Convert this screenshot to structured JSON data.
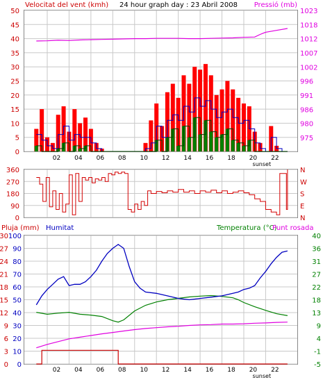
{
  "colors": {
    "wind_speed": "#ff0000",
    "wind_avg": "#0000c0",
    "wind_low": "#008000",
    "pressure": "#e000e0",
    "direction": "#d40000",
    "humidity": "#0000c0",
    "temperature": "#008000",
    "dewpoint": "#e000e0",
    "rain": "#cc0000",
    "grid": "#c8c8c8"
  },
  "chart_data": [
    {
      "type": "line",
      "title": "24 hour graph day : 23 Abril 2008",
      "left_label": "Velocitat del vent (kmh)",
      "right_label": "Pressió (mb)",
      "x_tick_labels": [
        "02",
        "04",
        "06",
        "08",
        "10",
        "12",
        "14",
        "16",
        "18",
        "20",
        "22"
      ],
      "sunset_label": "sunset",
      "ylim_left": [
        0,
        50
      ],
      "y_ticks_left": [
        "0",
        "5",
        "10",
        "15",
        "20",
        "25",
        "30",
        "35",
        "40",
        "45",
        "50"
      ],
      "ylim_right": [
        975,
        1028
      ],
      "y_ticks_right": [
        "975",
        "980",
        "986",
        "991",
        "996",
        "1002",
        "1007",
        "1012",
        "1018",
        "1023"
      ],
      "series": [
        {
          "name": "wind_gust",
          "x": [
            0,
            0.5,
            1,
            1.5,
            2,
            2.5,
            3,
            3.5,
            4,
            4.5,
            5,
            5.5,
            6,
            6.5,
            7,
            7.5,
            8,
            8.5,
            9,
            9.5,
            10,
            10.5,
            11,
            11.5,
            12,
            12.5,
            13,
            13.5,
            14,
            14.5,
            15,
            15.5,
            16,
            16.5,
            17,
            17.5,
            18,
            18.5,
            19,
            19.5,
            20,
            20.5,
            21,
            21.5,
            22,
            22.5,
            23
          ],
          "values": [
            8,
            15,
            5,
            3,
            13,
            16,
            7,
            15,
            10,
            12,
            8,
            3,
            1,
            0,
            0,
            0,
            0,
            0,
            0,
            0,
            3,
            11,
            17,
            9,
            21,
            24,
            19,
            27,
            24,
            30,
            29,
            31,
            27,
            20,
            22,
            25,
            22,
            19,
            17,
            16,
            7,
            3,
            0,
            9,
            2,
            0,
            0
          ]
        },
        {
          "name": "wind_avg",
          "x": [
            0,
            0.5,
            1,
            1.5,
            2,
            2.5,
            3,
            3.5,
            4,
            4.5,
            5,
            5.5,
            6,
            6.5,
            7,
            7.5,
            8,
            8.5,
            9,
            9.5,
            10,
            10.5,
            11,
            11.5,
            12,
            12.5,
            13,
            13.5,
            14,
            14.5,
            15,
            15.5,
            16,
            16.5,
            17,
            17.5,
            18,
            18.5,
            19,
            19.5,
            20,
            20.5,
            21,
            21.5,
            22,
            22.5,
            23
          ],
          "values": [
            6,
            4,
            2,
            1,
            6,
            9,
            4,
            6,
            5,
            5,
            3,
            1,
            0,
            0,
            0,
            0,
            0,
            0,
            0,
            0,
            1,
            3,
            9,
            5,
            11,
            13,
            11,
            16,
            14,
            19,
            16,
            18,
            15,
            12,
            14,
            15,
            12,
            10,
            11,
            8,
            3,
            1,
            0,
            5,
            1,
            0,
            0
          ]
        },
        {
          "name": "wind_low",
          "x": [
            0,
            0.5,
            1,
            1.5,
            2,
            2.5,
            3,
            3.5,
            4,
            4.5,
            5,
            5.5,
            6,
            6.5,
            7,
            7.5,
            8,
            8.5,
            9,
            9.5,
            10,
            10.5,
            11,
            11.5,
            12,
            12.5,
            13,
            13.5,
            14,
            14.5,
            15,
            15.5,
            16,
            16.5,
            17,
            17.5,
            18,
            18.5,
            19,
            19.5,
            20,
            20.5,
            21,
            21.5,
            22,
            22.5,
            23
          ],
          "values": [
            2,
            0,
            0,
            0,
            1,
            3,
            0,
            2,
            1,
            2,
            0,
            0,
            0,
            0,
            0,
            0,
            0,
            0,
            0,
            0,
            0,
            0,
            4,
            0,
            5,
            8,
            2,
            9,
            5,
            12,
            6,
            11,
            7,
            5,
            6,
            8,
            4,
            3,
            2,
            4,
            0,
            0,
            0,
            0,
            0,
            0,
            0
          ]
        },
        {
          "name": "pressure",
          "axis": "right",
          "x": [
            0,
            1,
            2,
            3,
            4,
            5,
            6,
            7,
            8,
            9,
            10,
            11,
            12,
            13,
            14,
            15,
            16,
            17,
            18,
            19,
            20,
            20.5,
            21,
            22,
            23
          ],
          "values": [
            1016.5,
            1016.6,
            1016.8,
            1016.7,
            1016.9,
            1017.0,
            1017.1,
            1017.2,
            1017.3,
            1017.4,
            1017.4,
            1017.5,
            1017.5,
            1017.5,
            1017.4,
            1017.4,
            1017.5,
            1017.6,
            1017.7,
            1017.9,
            1018.0,
            1019.0,
            1019.8,
            1020.5,
            1021.2
          ]
        }
      ]
    },
    {
      "type": "line",
      "left_label": "",
      "ylim": [
        0,
        360
      ],
      "y_ticks_left": [
        "0",
        "90",
        "180",
        "270",
        "360"
      ],
      "right_ticks": [
        "N",
        "E",
        "S",
        "W",
        "N"
      ],
      "series": [
        {
          "name": "wind_direction",
          "x": [
            0,
            0.3,
            0.6,
            0.9,
            1.2,
            1.5,
            1.8,
            2.1,
            2.4,
            2.7,
            3.0,
            3.3,
            3.6,
            3.9,
            4.2,
            4.5,
            4.8,
            5.1,
            5.4,
            5.7,
            6.0,
            6.3,
            6.6,
            6.9,
            7.2,
            7.5,
            7.8,
            8.1,
            8.4,
            8.7,
            9.0,
            9.3,
            9.6,
            9.9,
            10.2,
            10.5,
            11,
            11.5,
            12,
            12.5,
            13,
            13.5,
            14,
            14.5,
            15,
            15.5,
            16,
            16.5,
            17,
            17.5,
            18,
            18.5,
            19,
            19.5,
            20,
            20.5,
            21,
            21.5,
            22,
            22.3,
            22.6,
            22.9,
            23
          ],
          "values": [
            300,
            250,
            120,
            300,
            80,
            200,
            60,
            180,
            40,
            100,
            320,
            20,
            330,
            120,
            300,
            280,
            300,
            260,
            290,
            280,
            300,
            270,
            330,
            320,
            340,
            330,
            340,
            330,
            60,
            40,
            100,
            60,
            120,
            90,
            200,
            180,
            195,
            185,
            200,
            190,
            210,
            190,
            200,
            180,
            200,
            190,
            205,
            185,
            200,
            180,
            190,
            200,
            185,
            170,
            140,
            120,
            60,
            40,
            20,
            330,
            330,
            60,
            360
          ]
        }
      ]
    },
    {
      "type": "line",
      "left_label_1": "Pluja (mm)",
      "left_label_2": "Humitat",
      "right_label_1": "Temperatura (°C)",
      "right_label_2": "Punt rosada",
      "ylim_rain": [
        0,
        30
      ],
      "y_ticks_rain": [
        "0",
        "3",
        "6",
        "9",
        "12",
        "15",
        "18",
        "21",
        "24",
        "27",
        "30"
      ],
      "ylim_humidity": [
        0,
        100
      ],
      "y_ticks_humidity": [
        "0",
        "10",
        "20",
        "30",
        "40",
        "50",
        "60",
        "70",
        "80",
        "90",
        "100"
      ],
      "ylim_temp": [
        -5,
        41
      ],
      "y_ticks_temp": [
        "-5",
        "-1",
        "4",
        "9",
        "13",
        "18",
        "22",
        "27",
        "31",
        "36",
        "40"
      ],
      "series": [
        {
          "name": "humidity",
          "x": [
            0,
            0.5,
            1,
            1.5,
            2,
            2.5,
            3,
            3.5,
            4,
            4.5,
            5,
            5.5,
            6,
            6.5,
            7,
            7.5,
            8,
            8.5,
            9,
            9.5,
            10,
            11,
            12,
            13,
            14,
            15,
            16,
            17,
            18,
            18.5,
            19,
            19.5,
            20,
            20.5,
            21,
            21.5,
            22,
            22.5,
            23
          ],
          "values": [
            46,
            53,
            58,
            62,
            66,
            68,
            61,
            62,
            62,
            64,
            68,
            73,
            80,
            86,
            90,
            93,
            90,
            76,
            64,
            59,
            56,
            55,
            53,
            51,
            50,
            51,
            52,
            53,
            55,
            56,
            58,
            59,
            61,
            67,
            72,
            78,
            83,
            87,
            88
          ]
        },
        {
          "name": "temperature",
          "x": [
            0,
            1,
            2,
            3,
            4,
            5,
            6,
            7,
            7.5,
            8,
            9,
            10,
            11,
            12,
            13,
            14,
            15,
            16,
            17,
            18,
            18.5,
            19,
            20,
            21,
            22,
            23
          ],
          "values": [
            13.5,
            12.8,
            13.2,
            13.5,
            12.8,
            12.5,
            12.0,
            10.5,
            10.0,
            10.8,
            14.0,
            16.0,
            17.2,
            18.0,
            18.5,
            19.0,
            19.3,
            19.5,
            19.2,
            18.7,
            18.0,
            17.0,
            15.5,
            14.2,
            13.0,
            12.3
          ]
        },
        {
          "name": "dewpoint",
          "x": [
            0,
            1,
            2,
            3,
            4,
            5,
            6,
            7,
            8,
            9,
            10,
            11,
            12,
            13,
            14,
            15,
            16,
            17,
            18,
            19,
            20,
            21,
            22,
            23
          ],
          "values": [
            0.8,
            2.0,
            3.0,
            4.0,
            4.6,
            5.2,
            5.8,
            6.3,
            6.8,
            7.3,
            7.7,
            8.0,
            8.3,
            8.5,
            8.8,
            9.0,
            9.1,
            9.3,
            9.3,
            9.4,
            9.6,
            9.7,
            9.9,
            10.0
          ]
        },
        {
          "name": "rain",
          "x": [
            0,
            0.5,
            0.5,
            7.5,
            7.5,
            23
          ],
          "values": [
            0,
            0,
            3.2,
            3.2,
            0,
            0
          ]
        }
      ]
    }
  ]
}
